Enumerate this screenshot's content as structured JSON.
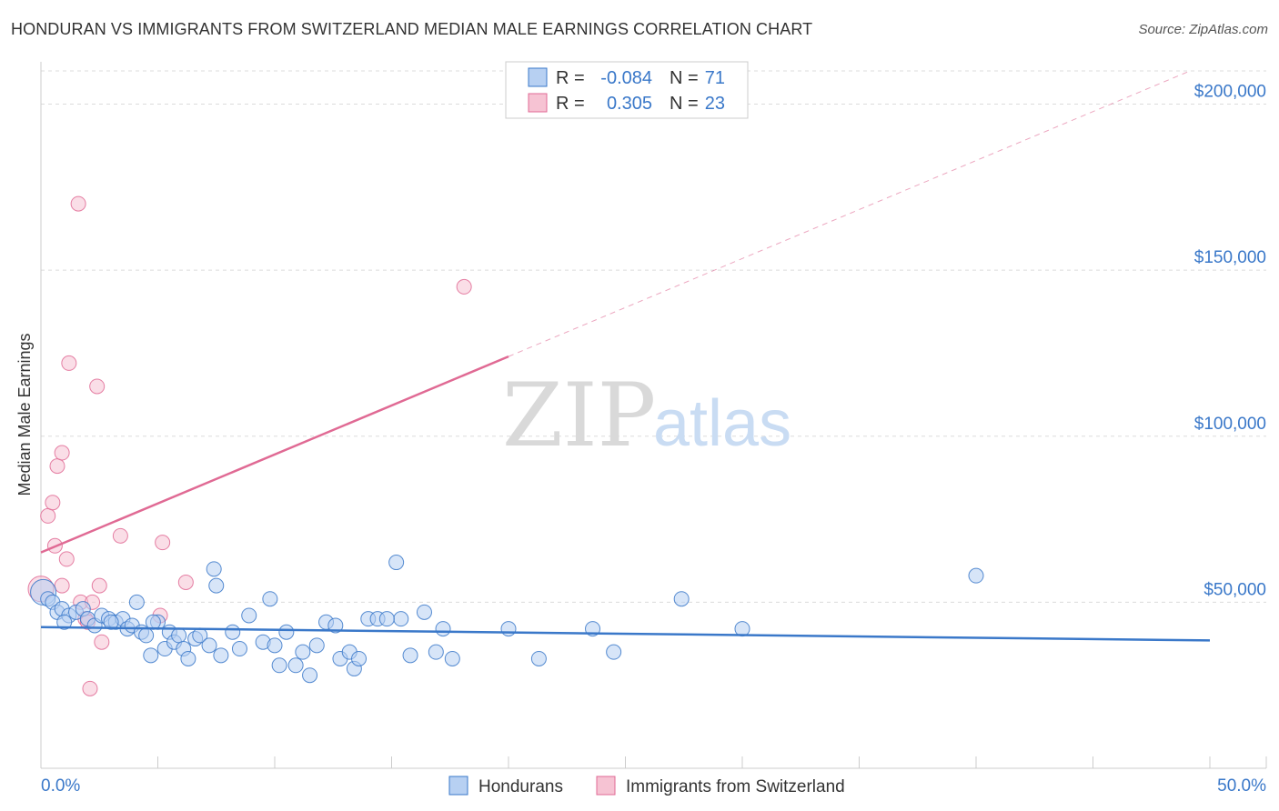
{
  "title": "HONDURAN VS IMMIGRANTS FROM SWITZERLAND MEDIAN MALE EARNINGS CORRELATION CHART",
  "source": "Source: ZipAtlas.com",
  "watermark": {
    "zip": "ZIP",
    "atlas": "atlas"
  },
  "colors": {
    "blue": "#3a78c9",
    "blue_fill": "#b7d0f2",
    "pink": "#e06a94",
    "pink_fill": "#f6c3d3"
  },
  "chart_data": {
    "type": "scatter",
    "xlabel": "",
    "ylabel": "Median Male Earnings",
    "xlim": [
      0,
      50
    ],
    "ylim": [
      0,
      210000
    ],
    "x_tick_labels": [
      "0.0%",
      "50.0%"
    ],
    "y_ticks": [
      50000,
      100000,
      150000,
      200000
    ],
    "y_tick_labels": [
      "$50,000",
      "$100,000",
      "$150,000",
      "$200,000"
    ],
    "grid": true,
    "legend": [
      {
        "series": "Hondurans",
        "r_label": "R =",
        "r": "-0.084",
        "n_label": "N =",
        "n": "71"
      },
      {
        "series": "Immigrants from Switzerland",
        "r_label": "R =",
        "r": "0.305",
        "n_label": "N =",
        "n": "23"
      }
    ],
    "series": [
      {
        "name": "Hondurans",
        "color": "#3a78c9",
        "trend": {
          "x0": 0,
          "y0": 42500,
          "x1": 50,
          "y1": 38500
        },
        "points": [
          [
            0.1,
            53000
          ],
          [
            0.3,
            51000
          ],
          [
            0.5,
            50000
          ],
          [
            0.7,
            47000
          ],
          [
            0.9,
            48000
          ],
          [
            1.2,
            46000
          ],
          [
            1.5,
            47000
          ],
          [
            1.8,
            48000
          ],
          [
            2.0,
            45000
          ],
          [
            2.3,
            43000
          ],
          [
            2.6,
            46000
          ],
          [
            2.9,
            45000
          ],
          [
            3.2,
            44000
          ],
          [
            3.5,
            45000
          ],
          [
            3.7,
            42000
          ],
          [
            3.9,
            43000
          ],
          [
            4.1,
            50000
          ],
          [
            4.3,
            41000
          ],
          [
            4.5,
            40000
          ],
          [
            4.7,
            34000
          ],
          [
            5.0,
            44000
          ],
          [
            5.3,
            36000
          ],
          [
            5.5,
            41000
          ],
          [
            5.7,
            38000
          ],
          [
            5.9,
            40000
          ],
          [
            6.1,
            36000
          ],
          [
            6.3,
            33000
          ],
          [
            6.6,
            39000
          ],
          [
            6.8,
            40000
          ],
          [
            7.2,
            37000
          ],
          [
            7.5,
            55000
          ],
          [
            7.7,
            34000
          ],
          [
            8.2,
            41000
          ],
          [
            8.5,
            36000
          ],
          [
            8.9,
            46000
          ],
          [
            9.5,
            38000
          ],
          [
            9.8,
            51000
          ],
          [
            10.2,
            31000
          ],
          [
            10.5,
            41000
          ],
          [
            10.9,
            31000
          ],
          [
            11.2,
            35000
          ],
          [
            11.5,
            28000
          ],
          [
            11.8,
            37000
          ],
          [
            12.2,
            44000
          ],
          [
            12.6,
            43000
          ],
          [
            12.8,
            33000
          ],
          [
            13.2,
            35000
          ],
          [
            13.4,
            30000
          ],
          [
            14.0,
            45000
          ],
          [
            14.4,
            45000
          ],
          [
            15.2,
            62000
          ],
          [
            15.4,
            45000
          ],
          [
            15.8,
            34000
          ],
          [
            16.4,
            47000
          ],
          [
            16.9,
            35000
          ],
          [
            17.2,
            42000
          ],
          [
            17.6,
            33000
          ],
          [
            20.0,
            42000
          ],
          [
            21.3,
            33000
          ],
          [
            23.6,
            42000
          ],
          [
            24.5,
            35000
          ],
          [
            27.4,
            51000
          ],
          [
            30.0,
            42000
          ],
          [
            40.0,
            58000
          ],
          [
            7.4,
            60000
          ],
          [
            10.0,
            37000
          ],
          [
            13.6,
            33000
          ],
          [
            14.8,
            45000
          ],
          [
            3.0,
            44000
          ],
          [
            4.8,
            44000
          ],
          [
            1.0,
            44000
          ]
        ]
      },
      {
        "name": "Immigrants from Switzerland",
        "color": "#e06a94",
        "trend": {
          "x0": 0,
          "y0": 65000,
          "x1": 20,
          "y1": 124000
        },
        "points": [
          [
            0.0,
            54000
          ],
          [
            0.3,
            76000
          ],
          [
            0.5,
            80000
          ],
          [
            0.6,
            67000
          ],
          [
            0.7,
            91000
          ],
          [
            0.9,
            95000
          ],
          [
            1.1,
            63000
          ],
          [
            1.2,
            122000
          ],
          [
            1.6,
            170000
          ],
          [
            1.7,
            50000
          ],
          [
            1.9,
            45000
          ],
          [
            2.2,
            50000
          ],
          [
            2.4,
            115000
          ],
          [
            2.5,
            55000
          ],
          [
            2.6,
            38000
          ],
          [
            3.4,
            70000
          ],
          [
            5.1,
            46000
          ],
          [
            5.2,
            68000
          ],
          [
            6.2,
            56000
          ],
          [
            18.1,
            145000
          ],
          [
            2.1,
            24000
          ],
          [
            0.9,
            55000
          ],
          [
            2.0,
            44000
          ]
        ]
      }
    ]
  }
}
